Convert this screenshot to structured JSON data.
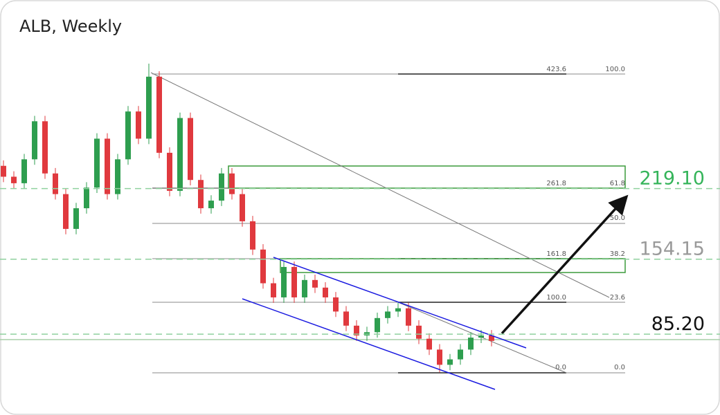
{
  "chart_data": {
    "type": "candlestick",
    "title": "ALB, Weekly",
    "open": [
      240,
      230,
      224,
      246,
      281,
      233,
      214,
      182,
      201,
      220,
      265,
      214,
      246,
      290,
      265,
      322,
      252,
      217,
      284,
      227,
      201,
      208,
      233,
      214,
      189,
      163,
      132,
      119,
      147,
      119,
      135,
      128,
      119,
      106,
      93,
      84,
      87,
      100,
      106,
      109,
      93,
      81,
      71,
      57,
      62,
      71,
      82,
      84
    ],
    "high": [
      245,
      235,
      251,
      286,
      286,
      238,
      219,
      206,
      225,
      270,
      270,
      251,
      295,
      295,
      334,
      327,
      257,
      289,
      289,
      232,
      213,
      238,
      238,
      219,
      194,
      168,
      137,
      152,
      152,
      140,
      140,
      133,
      124,
      111,
      98,
      92,
      105,
      111,
      114,
      114,
      98,
      86,
      76,
      67,
      76,
      87,
      89,
      89
    ],
    "low": [
      225,
      219,
      219,
      241,
      228,
      209,
      177,
      177,
      196,
      215,
      209,
      209,
      241,
      260,
      260,
      247,
      212,
      212,
      222,
      196,
      196,
      203,
      209,
      184,
      158,
      127,
      114,
      114,
      114,
      114,
      123,
      114,
      101,
      88,
      79,
      79,
      82,
      95,
      101,
      88,
      76,
      66,
      50,
      52,
      57,
      66,
      77,
      74
    ],
    "close": [
      230,
      224,
      246,
      281,
      233,
      214,
      182,
      201,
      220,
      265,
      214,
      246,
      290,
      265,
      322,
      252,
      217,
      284,
      227,
      201,
      208,
      233,
      214,
      189,
      163,
      132,
      119,
      147,
      119,
      135,
      128,
      119,
      106,
      93,
      84,
      87,
      100,
      106,
      109,
      93,
      81,
      71,
      57,
      62,
      71,
      82,
      84,
      79
    ],
    "up_color": "#2e9e4f",
    "down_color": "#e0393e",
    "ylim": [
      49,
      334
    ],
    "levels": [
      {
        "value": 219.1,
        "label": "219.10",
        "color": "#35b45a"
      },
      {
        "value": 154.15,
        "label": "154.15",
        "color": "#9a9a9a"
      },
      {
        "value": 85.2,
        "label": "85.20",
        "color": "#111111"
      }
    ],
    "fib_extension_labels": [
      423.6,
      261.8,
      161.8,
      {
        "value": 100,
        "label": "100.0"
      },
      {
        "value": 0,
        "label": "0.0"
      }
    ],
    "fib_retracement_labels": [
      {
        "value": 100,
        "label": "100.0"
      },
      61.8,
      {
        "value": 50,
        "label": "50.0"
      },
      38.2,
      23.6,
      {
        "value": 0,
        "label": "0.0"
      }
    ]
  }
}
